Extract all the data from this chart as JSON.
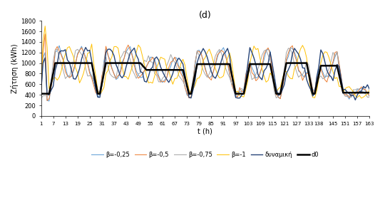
{
  "title": "(d)",
  "xlabel": "t (h)",
  "ylabel": "Ζήτηση (kWh)",
  "ylim": [
    0,
    1800
  ],
  "yticks": [
    0,
    200,
    400,
    600,
    800,
    1000,
    1200,
    1400,
    1600,
    1800
  ],
  "xtick_labels": [
    "1",
    "7",
    "13",
    "19",
    "25",
    "31",
    "37",
    "43",
    "49",
    "55",
    "61",
    "67",
    "73",
    "79",
    "85",
    "91",
    "97",
    "103",
    "109",
    "115",
    "121",
    "127",
    "133",
    "138",
    "145",
    "151",
    "157",
    "163"
  ],
  "xtick_positions": [
    1,
    7,
    13,
    19,
    25,
    31,
    37,
    43,
    49,
    55,
    61,
    67,
    73,
    79,
    85,
    91,
    97,
    103,
    109,
    115,
    121,
    127,
    133,
    138,
    145,
    151,
    157,
    163
  ],
  "legend_labels": [
    "β=-0,25",
    "β=-0,5",
    "β=-0,75",
    "β=-1",
    "δυναμική",
    "d0"
  ],
  "actual_colors": [
    "#5B9BD5",
    "#ED7D31",
    "#A5A5A5",
    "#FFC000",
    "#264478",
    "#000000"
  ],
  "actual_lws": [
    0.7,
    0.7,
    0.7,
    0.7,
    1.0,
    1.8
  ],
  "background_color": "#FFFFFF",
  "n_points": 163
}
